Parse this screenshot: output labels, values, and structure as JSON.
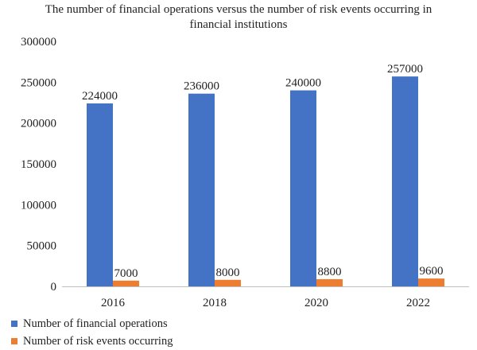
{
  "chart_data": {
    "type": "bar",
    "title_line1": "The number of financial operations versus the number of risk events occurring in",
    "title_line2": "financial institutions",
    "categories": [
      "2016",
      "2018",
      "2020",
      "2022"
    ],
    "series": [
      {
        "name": "Number of financial operations",
        "color": "#4472c4",
        "values": [
          224000,
          236000,
          240000,
          257000
        ]
      },
      {
        "name": "Number of risk events occurring",
        "color": "#ed7d31",
        "values": [
          7000,
          8000,
          8800,
          9600
        ]
      }
    ],
    "ylim": [
      0,
      300000
    ],
    "yticks": [
      0,
      50000,
      100000,
      150000,
      200000,
      250000,
      300000
    ],
    "grid": false,
    "legend_position": "bottom-left"
  }
}
